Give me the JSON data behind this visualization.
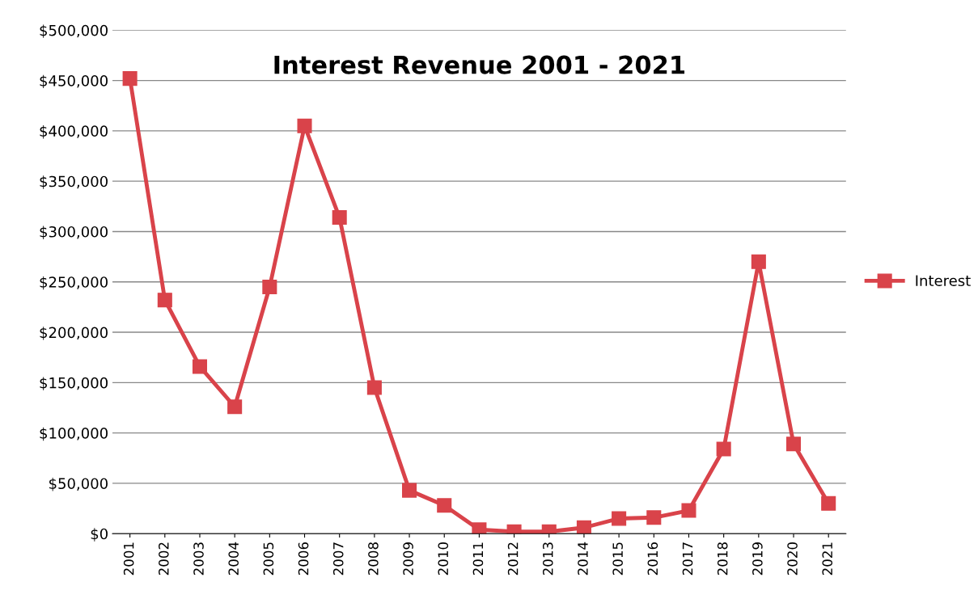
{
  "chart_data": {
    "type": "line",
    "title": "Interest Revenue 2001 - 2021",
    "categories": [
      "2001",
      "2002",
      "2003",
      "2004",
      "2005",
      "2006",
      "2007",
      "2008",
      "2009",
      "2010",
      "2011",
      "2012",
      "2013",
      "2014",
      "2015",
      "2016",
      "2017",
      "2018",
      "2019",
      "2020",
      "2021"
    ],
    "series": [
      {
        "name": "Interest",
        "color": "#d9434a",
        "values": [
          452000,
          232000,
          166000,
          126000,
          245000,
          405000,
          314000,
          145000,
          43000,
          28000,
          4000,
          2000,
          2000,
          6000,
          15000,
          16000,
          23000,
          84000,
          270000,
          89000,
          30000
        ]
      }
    ],
    "ylim": [
      0,
      500000
    ],
    "yticks": [
      {
        "value": 0,
        "label": "$0"
      },
      {
        "value": 50000,
        "label": "$50,000"
      },
      {
        "value": 100000,
        "label": "$100,000"
      },
      {
        "value": 150000,
        "label": "$150,000"
      },
      {
        "value": 200000,
        "label": "$200,000"
      },
      {
        "value": 250000,
        "label": "$250,000"
      },
      {
        "value": 300000,
        "label": "$300,000"
      },
      {
        "value": 350000,
        "label": "$350,000"
      },
      {
        "value": 400000,
        "label": "$400,000"
      },
      {
        "value": 450000,
        "label": "$450,000"
      },
      {
        "value": 500000,
        "label": "$500,000"
      }
    ],
    "grid": "y",
    "legend": "right",
    "marker": "square",
    "line_style": "solid"
  }
}
